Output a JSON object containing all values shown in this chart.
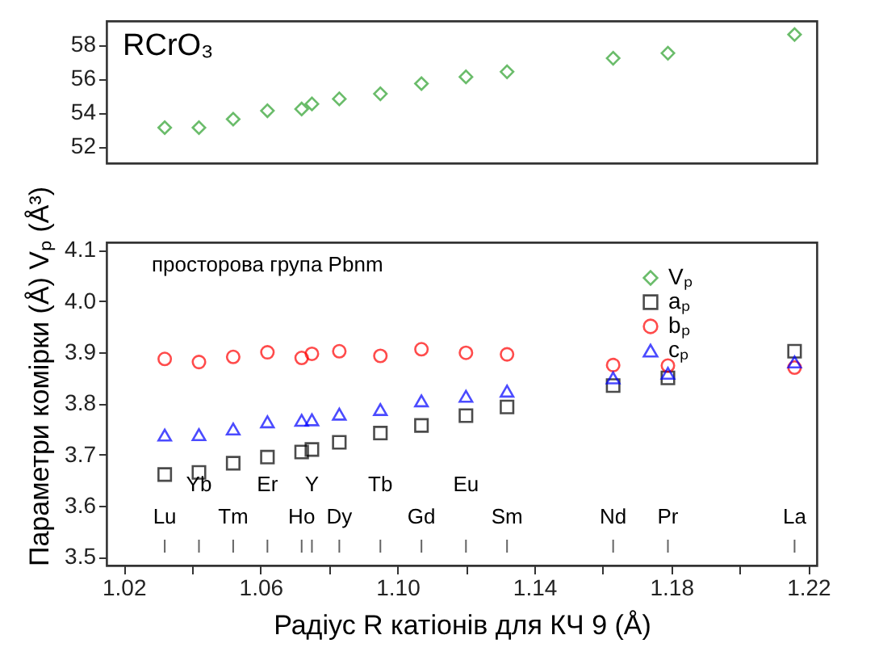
{
  "chart_data": [
    {
      "type": "scatter",
      "title": "RCrO₃",
      "x": [
        1.032,
        1.042,
        1.052,
        1.062,
        1.072,
        1.075,
        1.083,
        1.095,
        1.107,
        1.12,
        1.132,
        1.163,
        1.179,
        1.216
      ],
      "series": [
        {
          "name": "Vₚ",
          "color": "#2ca02c",
          "marker": "diamond",
          "values": [
            53.1,
            53.1,
            53.6,
            54.1,
            54.2,
            54.5,
            54.8,
            55.1,
            55.7,
            56.1,
            56.4,
            57.2,
            57.5,
            58.6
          ]
        }
      ],
      "xlim": [
        1.015,
        1.2225
      ],
      "ylim": [
        51.0,
        59.4
      ],
      "yticks": [
        52,
        54,
        56,
        58
      ],
      "tick_labels": "y"
    },
    {
      "type": "scatter",
      "x": [
        1.032,
        1.042,
        1.052,
        1.062,
        1.072,
        1.075,
        1.083,
        1.095,
        1.107,
        1.12,
        1.132,
        1.163,
        1.179,
        1.216
      ],
      "series": [
        {
          "name": "aₚ",
          "color": "#000000",
          "marker": "square",
          "values": [
            3.661,
            3.665,
            3.683,
            3.695,
            3.705,
            3.71,
            3.724,
            3.742,
            3.757,
            3.776,
            3.793,
            3.835,
            3.85,
            3.902
          ]
        },
        {
          "name": "bₚ",
          "color": "#ff0000",
          "marker": "circle",
          "values": [
            3.887,
            3.881,
            3.891,
            3.9,
            3.889,
            3.897,
            3.902,
            3.893,
            3.906,
            3.899,
            3.896,
            3.875,
            3.874,
            3.87
          ]
        },
        {
          "name": "cₚ",
          "color": "#0000ff",
          "marker": "triangle",
          "values": [
            3.738,
            3.739,
            3.75,
            3.764,
            3.767,
            3.768,
            3.779,
            3.788,
            3.805,
            3.814,
            3.824,
            3.85,
            3.859,
            3.881
          ]
        }
      ],
      "xlim": [
        1.015,
        1.2225
      ],
      "ylim": [
        3.483,
        4.115
      ],
      "xticks": [
        1.02,
        {
          "value": 1.04,
          "label": null
        },
        1.06,
        {
          "value": 1.08,
          "label": null
        },
        {
          "value": 1.1,
          "label": "1.10"
        },
        {
          "value": 1.12,
          "label": null
        },
        1.14,
        {
          "value": 1.16,
          "label": null
        },
        1.18,
        {
          "value": 1.2,
          "label": null
        },
        1.22
      ],
      "yticks": [
        3.5,
        3.6,
        3.7,
        3.8,
        3.9,
        {
          "value": 4.0,
          "label": "4.0"
        },
        4.1
      ],
      "xlabel": "Радіус R катіонів для КЧ 9 (Å)",
      "legend": "top right",
      "ylabel": "Параметри комірки (Å) Vₚ (Å³)",
      "annotations": [
        "просторова група Pbnm",
        "Lu",
        "Yb",
        "Tm",
        "Er",
        "Ho",
        "Y",
        "Dy",
        "Tb",
        "Gd",
        "Eu",
        "Sm",
        "Nd",
        "Pr",
        "La"
      ]
    }
  ]
}
